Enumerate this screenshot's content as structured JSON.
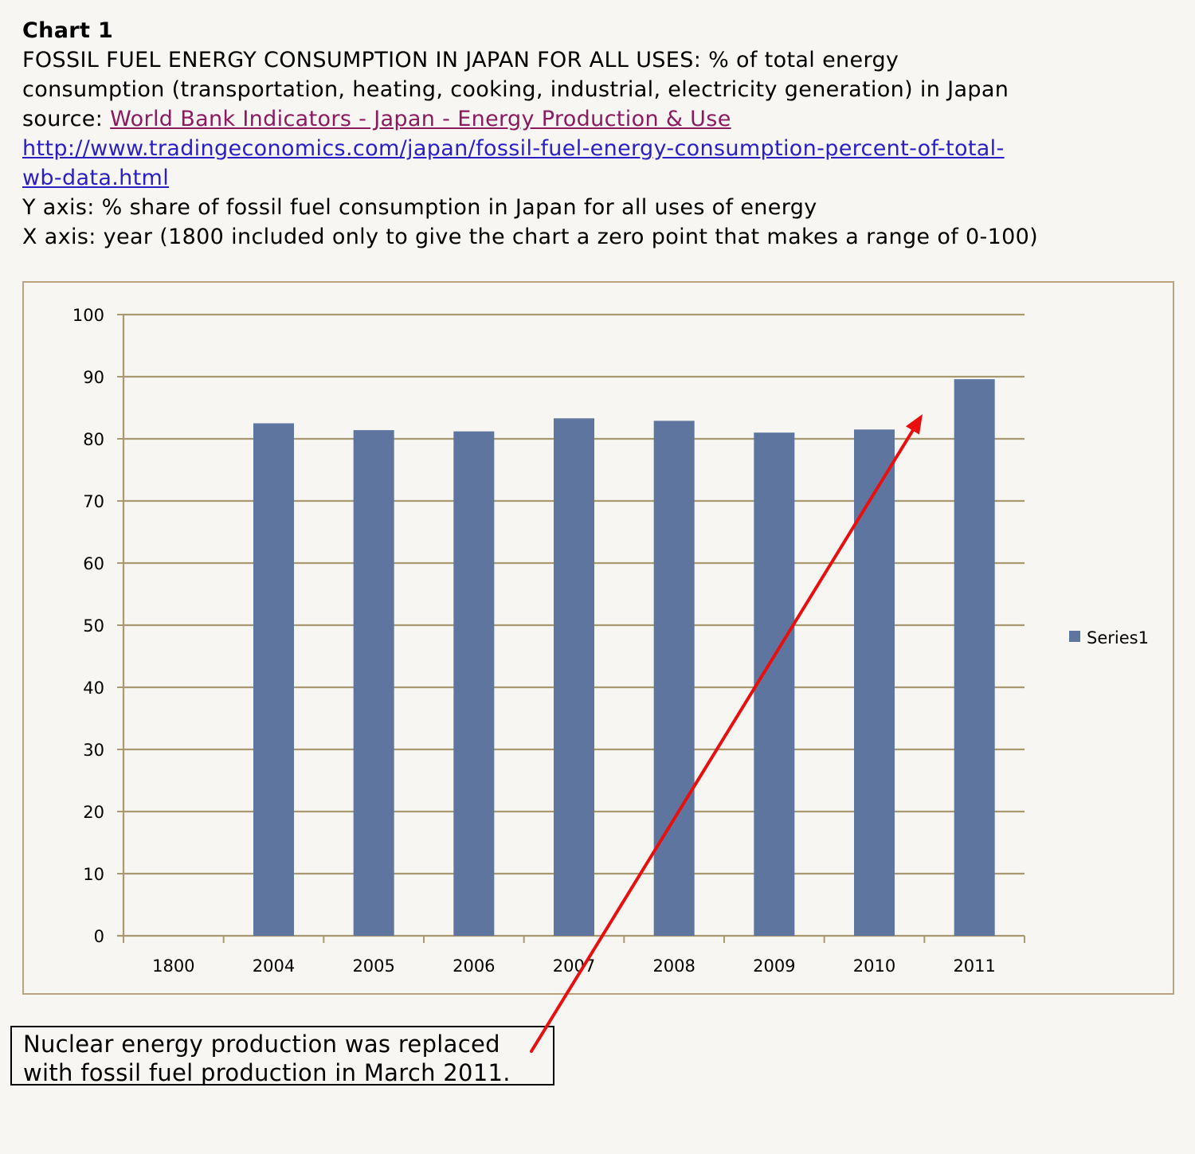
{
  "header": {
    "chart_label": "Chart 1",
    "title_line1": "FOSSIL FUEL ENERGY CONSUMPTION IN JAPAN FOR ALL USES: % of total energy",
    "title_line2": "consumption (transportation, heating, cooking, industrial, electricity generation) in Japan",
    "source_prefix": "source: ",
    "source_link_text": "World Bank Indicators - Japan - Energy Production & Use ",
    "url_line1": "http://www.tradingeconomics.com/japan/fossil-fuel-energy-consumption-percent-of-total-",
    "url_line2": "wb-data.html",
    "y_axis_note": "Y axis: % share of fossil fuel consumption in Japan for all uses of energy",
    "x_axis_note": "X axis: year (1800 included only to give the chart a zero point that makes a range of 0-100)"
  },
  "callout": {
    "line1": "Nuclear energy production was replaced",
    "line2": "with fossil fuel production in March 2011."
  },
  "colors": {
    "bar": "#5e75a0",
    "gridline": "#a99970",
    "arrow": "#e8100e"
  },
  "chart_data": {
    "type": "bar",
    "categories": [
      "1800",
      "2004",
      "2005",
      "2006",
      "2007",
      "2008",
      "2009",
      "2010",
      "2011"
    ],
    "series": [
      {
        "name": "Series1",
        "values": [
          0,
          82.5,
          81.4,
          81.2,
          83.3,
          82.9,
          81.0,
          81.5,
          89.6
        ]
      }
    ],
    "ylim": [
      0,
      100
    ],
    "yticks": [
      "0",
      "10",
      "20",
      "30",
      "40",
      "50",
      "60",
      "70",
      "80",
      "90",
      "100"
    ],
    "grid": true,
    "legend": "right",
    "xlabel": "",
    "ylabel": "",
    "annotation": "arrow from callout pointing up toward the 2011 bar"
  }
}
